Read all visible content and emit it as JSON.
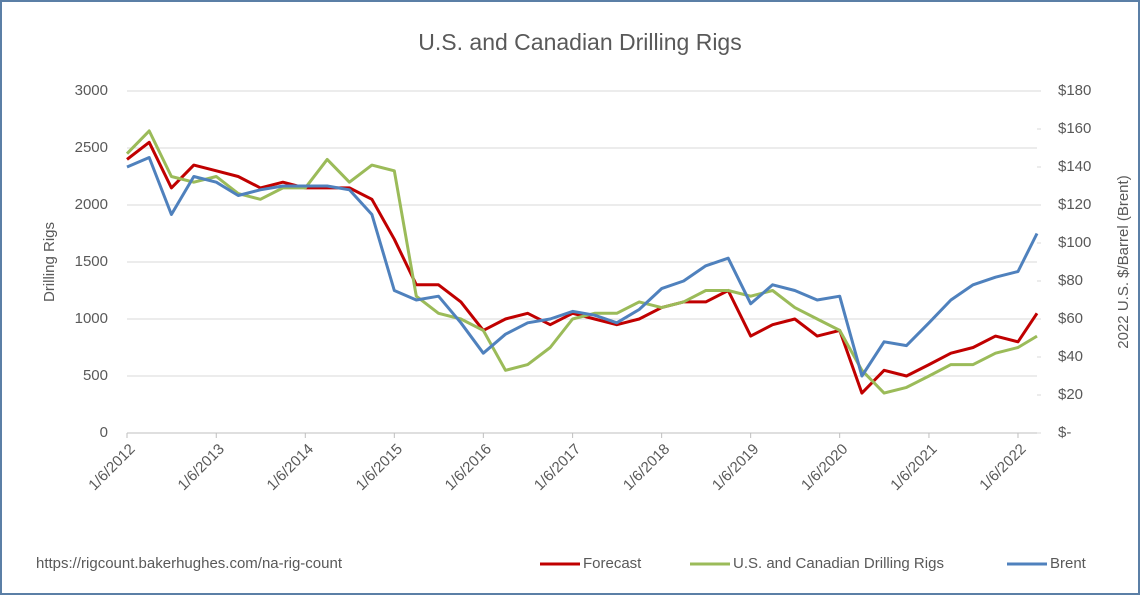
{
  "chart_data": {
    "type": "line",
    "title": "U.S. and Canadian Drilling Rigs",
    "ylabel": "Drilling Rigs",
    "y2label": "2022 U.S. $/Barrel (Brent)",
    "source": "https://rigcount.bakerhughes.com/na-rig-count",
    "x": [
      "2012-01-06",
      "2012-04-06",
      "2012-07-06",
      "2012-10-06",
      "2013-01-06",
      "2013-04-06",
      "2013-07-06",
      "2013-10-06",
      "2014-01-06",
      "2014-04-06",
      "2014-07-06",
      "2014-10-06",
      "2015-01-06",
      "2015-04-06",
      "2015-07-06",
      "2015-10-06",
      "2016-01-06",
      "2016-04-06",
      "2016-07-06",
      "2016-10-06",
      "2017-01-06",
      "2017-04-06",
      "2017-07-06",
      "2017-10-06",
      "2018-01-06",
      "2018-04-06",
      "2018-07-06",
      "2018-10-06",
      "2019-01-06",
      "2019-04-06",
      "2019-07-06",
      "2019-10-06",
      "2020-01-06",
      "2020-04-06",
      "2020-07-06",
      "2020-10-06",
      "2021-01-06",
      "2021-04-06",
      "2021-07-06",
      "2021-10-06",
      "2022-01-06",
      "2022-03-25"
    ],
    "xlim": [
      "2012-01-06",
      "2022-03-25"
    ],
    "xticks": [
      {
        "value": "2012-01-06",
        "label": "1/6/2012"
      },
      {
        "value": "2013-01-06",
        "label": "1/6/2013"
      },
      {
        "value": "2014-01-06",
        "label": "1/6/2014"
      },
      {
        "value": "2015-01-06",
        "label": "1/6/2015"
      },
      {
        "value": "2016-01-06",
        "label": "1/6/2016"
      },
      {
        "value": "2017-01-06",
        "label": "1/6/2017"
      },
      {
        "value": "2018-01-06",
        "label": "1/6/2018"
      },
      {
        "value": "2019-01-06",
        "label": "1/6/2019"
      },
      {
        "value": "2020-01-06",
        "label": "1/6/2020"
      },
      {
        "value": "2021-01-06",
        "label": "1/6/2021"
      },
      {
        "value": "2022-01-06",
        "label": "1/6/2022"
      }
    ],
    "ylim": [
      0,
      3000
    ],
    "yticks": [
      0,
      500,
      1000,
      1500,
      2000,
      2500,
      3000
    ],
    "y2lim": [
      0,
      180
    ],
    "y2ticks": [
      {
        "value": 0,
        "label": "$-"
      },
      {
        "value": 20,
        "label": "$20"
      },
      {
        "value": 40,
        "label": "$40"
      },
      {
        "value": 60,
        "label": "$60"
      },
      {
        "value": 80,
        "label": "$80"
      },
      {
        "value": 100,
        "label": "$100"
      },
      {
        "value": 120,
        "label": "$120"
      },
      {
        "value": 140,
        "label": "$140"
      },
      {
        "value": 160,
        "label": "$160"
      },
      {
        "value": 180,
        "label": "$180"
      }
    ],
    "grid": true,
    "legend": "bottom",
    "series": [
      {
        "name": "Forecast",
        "color": "#c00000",
        "values": [
          2400,
          2550,
          2150,
          2350,
          2300,
          2250,
          2150,
          2200,
          2150,
          2150,
          2150,
          2050,
          1700,
          1300,
          1300,
          1150,
          900,
          1000,
          1050,
          950,
          1050,
          1000,
          950,
          1000,
          1100,
          1150,
          1150,
          1250,
          850,
          950,
          1000,
          850,
          900,
          350,
          550,
          500,
          600,
          700,
          750,
          850,
          800,
          1050
        ]
      },
      {
        "name": "U.S. and Canadian Drilling Rigs",
        "color": "#9bbb59",
        "values": [
          2450,
          2650,
          2250,
          2200,
          2250,
          2100,
          2050,
          2150,
          2150,
          2400,
          2200,
          2350,
          2300,
          1200,
          1050,
          1000,
          900,
          550,
          600,
          750,
          1000,
          1050,
          1050,
          1150,
          1100,
          1150,
          1250,
          1250,
          1200,
          1250,
          1100,
          1000,
          900,
          550,
          350,
          400,
          500,
          600,
          600,
          700,
          750,
          850
        ]
      },
      {
        "name": "Brent",
        "color": "#4f81bd",
        "axis": "y2",
        "values": [
          140,
          145,
          115,
          135,
          132,
          125,
          128,
          130,
          130,
          130,
          128,
          115,
          75,
          70,
          72,
          58,
          42,
          52,
          58,
          60,
          64,
          62,
          58,
          65,
          76,
          80,
          88,
          92,
          68,
          78,
          75,
          70,
          72,
          30,
          48,
          46,
          58,
          70,
          78,
          82,
          85,
          105
        ]
      }
    ]
  }
}
